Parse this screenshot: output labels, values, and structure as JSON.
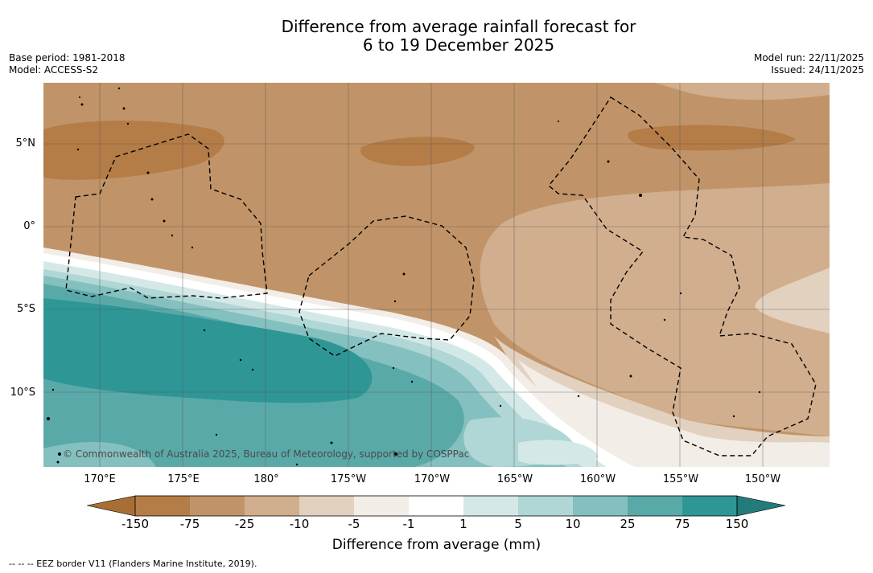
{
  "header": {
    "title_line1": "Difference from average rainfall forecast for",
    "title_line2": "6 to 19 December 2025",
    "base_period": "Base period: 1981-2018",
    "model": "Model: ACCESS-S2",
    "model_run": "Model run: 22/11/2025",
    "issued": "Issued: 24/11/2025"
  },
  "map": {
    "latitude_labels": [
      "5°N",
      "0°",
      "5°S",
      "10°S"
    ],
    "longitude_labels": [
      "170°E",
      "175°E",
      "180°",
      "175°W",
      "170°W",
      "165°W",
      "160°W",
      "155°W",
      "150°W"
    ],
    "copyright": "© Commonwealth of Australia 2025, Bureau of Meteorology, supported by COSPPac"
  },
  "colorbar": {
    "ticks": [
      "-150",
      "-75",
      "-25",
      "-10",
      "-5",
      "-1",
      "1",
      "5",
      "10",
      "25",
      "75",
      "150"
    ],
    "colors": [
      "#a86f35",
      "#b47c47",
      "#c09468",
      "#d1ae8e",
      "#e3d1bf",
      "#f2ede7",
      "#ffffff",
      "#d4e9e7",
      "#b0d6d5",
      "#84c0bf",
      "#5aa9a9",
      "#2f9696",
      "#237b7c"
    ],
    "label": "Difference from average (mm)"
  },
  "legend": {
    "eez_text": "--  --  -- EEZ border V11 (Flanders Marine Institute, 2019)."
  }
}
